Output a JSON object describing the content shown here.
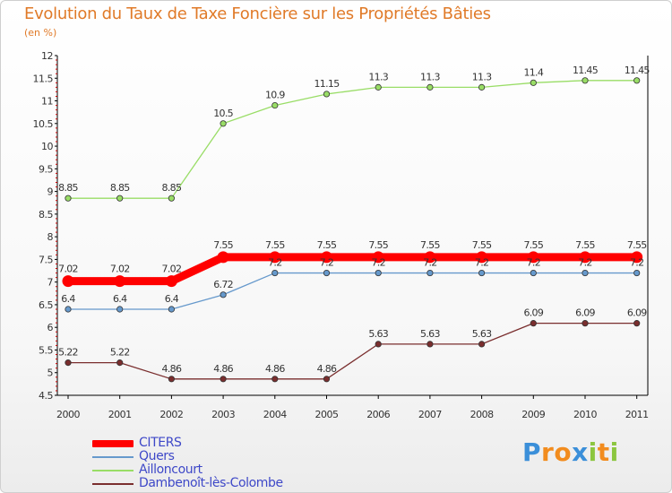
{
  "chart_data": {
    "type": "line",
    "title": "Evolution du Taux de Taxe Foncière sur les Propriétés Bâties",
    "subtitle": "(en %)",
    "x": [
      "2000",
      "2001",
      "2002",
      "2003",
      "2004",
      "2005",
      "2006",
      "2007",
      "2008",
      "2009",
      "2010",
      "2011"
    ],
    "ylim": [
      4.5,
      12
    ],
    "yticks": [
      "4.5",
      "5",
      "5.5",
      "6",
      "6.5",
      "7",
      "7.5",
      "8",
      "8.5",
      "9",
      "9.5",
      "10",
      "10.5",
      "11",
      "11.5",
      "12"
    ],
    "grid": false,
    "series": [
      {
        "name": "CITERS",
        "color": "#ff0000",
        "values": [
          7.02,
          7.02,
          7.02,
          7.55,
          7.55,
          7.55,
          7.55,
          7.55,
          7.55,
          7.55,
          7.55,
          7.55
        ],
        "labels": [
          "7.02",
          "7.02",
          "7.02",
          "7.55",
          "7.55",
          "7.55",
          "7.55",
          "7.55",
          "7.55",
          "7.55",
          "7.55",
          "7.55"
        ]
      },
      {
        "name": "Quers",
        "color": "#6699cc",
        "values": [
          6.4,
          6.4,
          6.4,
          6.72,
          7.2,
          7.2,
          7.2,
          7.2,
          7.2,
          7.2,
          7.2,
          7.2
        ],
        "labels": [
          "6.4",
          "6.4",
          "6.4",
          "6.72",
          "7.2",
          "7.2",
          "7.2",
          "7.2",
          "7.2",
          "7.2",
          "7.2",
          "7.2"
        ]
      },
      {
        "name": "Ailloncourt",
        "color": "#99dd66",
        "values": [
          8.85,
          8.85,
          8.85,
          10.5,
          10.9,
          11.15,
          11.3,
          11.3,
          11.3,
          11.4,
          11.45,
          11.45
        ],
        "labels": [
          "8.85",
          "8.85",
          "8.85",
          "10.5",
          "10.9",
          "11.15",
          "11.3",
          "11.3",
          "11.3",
          "11.4",
          "11.45",
          "11.45"
        ]
      },
      {
        "name": "Dambenoît-lès-Colombe",
        "color": "#7a2e2e",
        "values": [
          5.22,
          5.22,
          4.86,
          4.86,
          4.86,
          4.86,
          5.63,
          5.63,
          5.63,
          6.09,
          6.09,
          6.09
        ],
        "labels": [
          "5.22",
          "5.22",
          "4.86",
          "4.86",
          "4.86",
          "4.86",
          "5.63",
          "5.63",
          "5.63",
          "6.09",
          "6.09",
          "6.09"
        ]
      }
    ]
  },
  "brand": {
    "name": "Proxiti",
    "letters": [
      "P",
      "r",
      "o",
      "x",
      "i",
      "t",
      "i"
    ]
  }
}
